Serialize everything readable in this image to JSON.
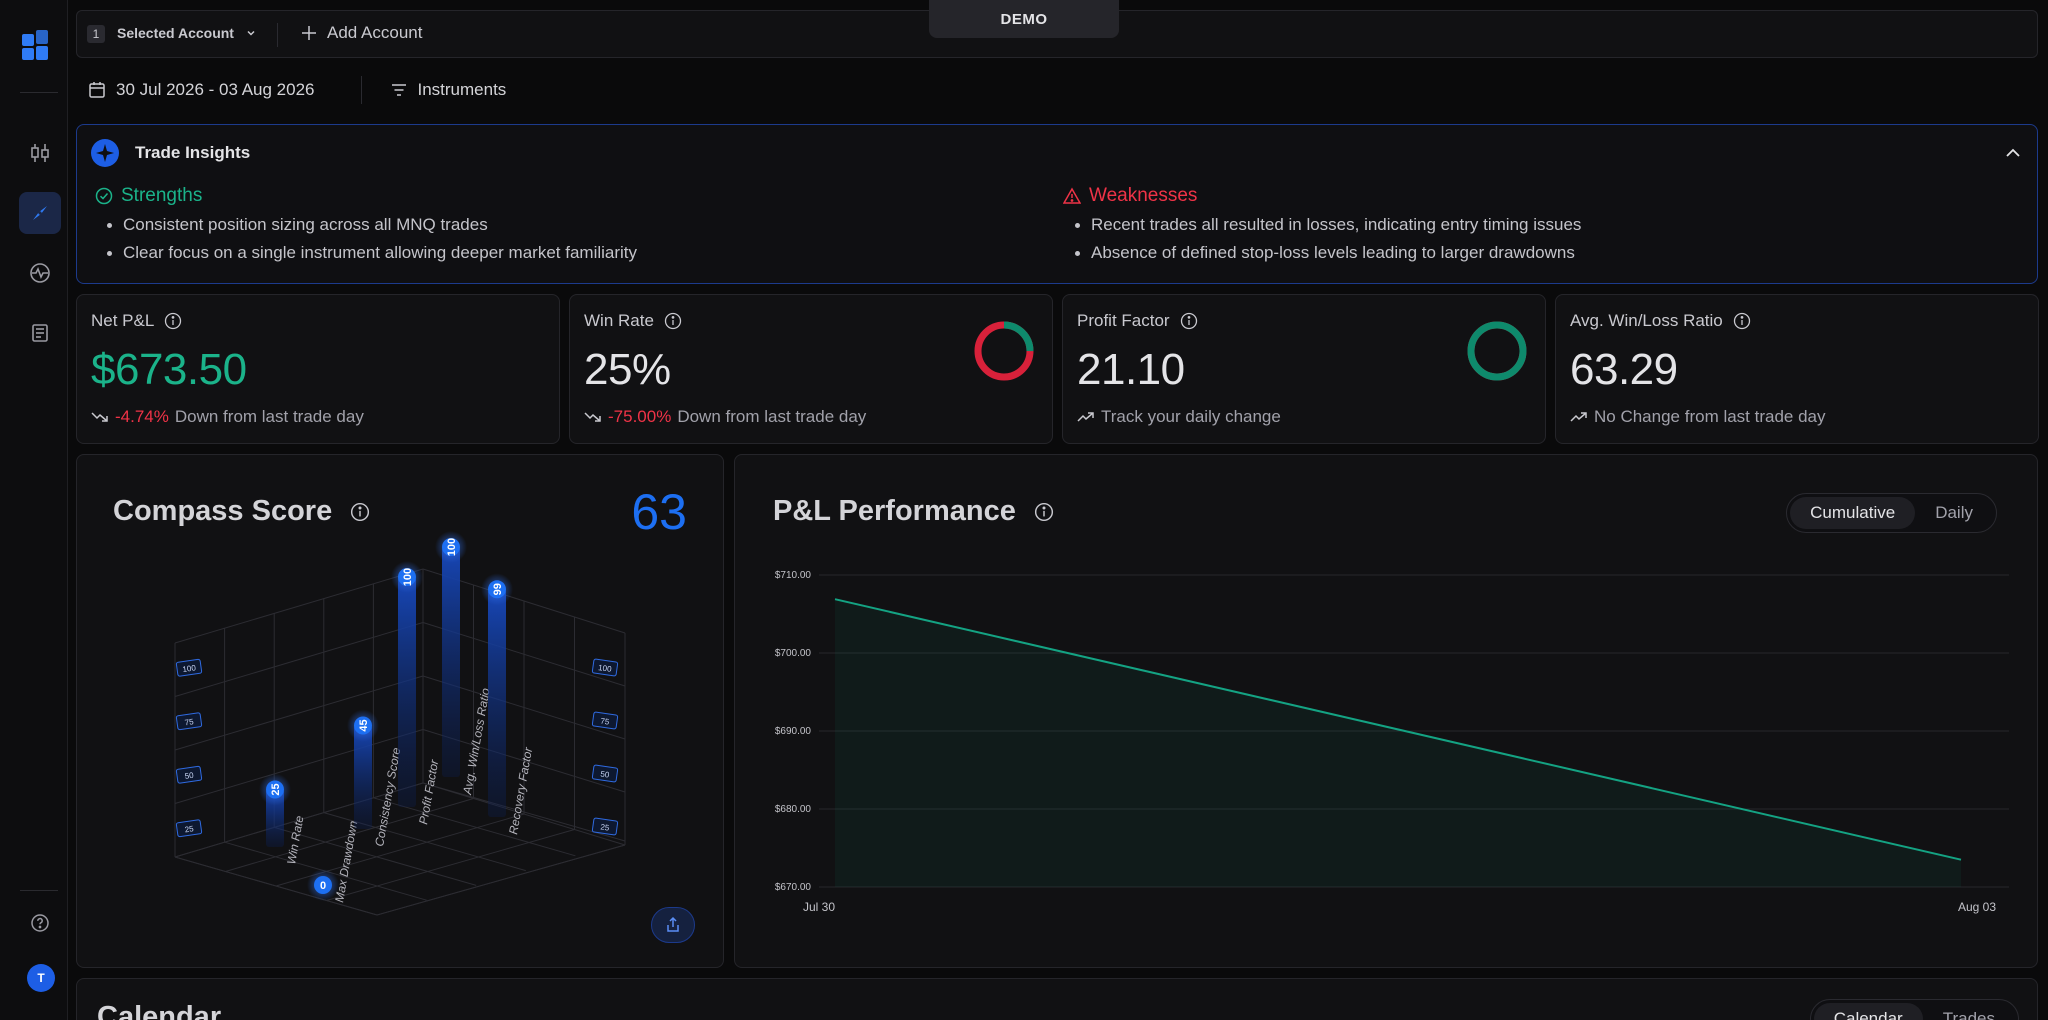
{
  "topbar": {
    "account_number": "1",
    "account_label": "Selected Account",
    "add_account_label": "Add Account",
    "mode_badge": "DEMO"
  },
  "filters": {
    "date_range": "30 Jul 2026 - 03 Aug 2026",
    "instruments_label": "Instruments"
  },
  "insights": {
    "title": "Trade Insights",
    "strengths": {
      "title": "Strengths",
      "items": [
        "Consistent position sizing across all MNQ trades",
        "Clear focus on a single instrument allowing deeper market familiarity"
      ]
    },
    "weaknesses": {
      "title": "Weaknesses",
      "items": [
        "Recent trades all resulted in losses, indicating entry timing issues",
        "Absence of defined stop-loss levels leading to larger drawdowns"
      ]
    }
  },
  "stats": [
    {
      "label": "Net P&L",
      "value": "$673.50",
      "change": "-4.74%",
      "sub": "Down from last trade day",
      "trend": "down"
    },
    {
      "label": "Win Rate",
      "value": "25%",
      "change": "-75.00%",
      "sub": "Down from last trade day",
      "trend": "down",
      "donut": {
        "fraction": 0.25,
        "colors": [
          "#0e8a6c",
          "#d8213a"
        ]
      }
    },
    {
      "label": "Profit Factor",
      "value": "21.10",
      "change": "",
      "sub": "Track your daily change",
      "trend": "up",
      "donut": {
        "fraction": 1,
        "colors": [
          "#0e8a6c",
          "#d8213a"
        ]
      }
    },
    {
      "label": "Avg. Win/Loss Ratio",
      "value": "63.29",
      "change": "",
      "sub": "No Change from last trade day",
      "trend": "up"
    }
  ],
  "compass": {
    "title": "Compass Score",
    "score": "63",
    "axis_ticks": [
      "100",
      "75",
      "50",
      "25"
    ],
    "metrics": [
      {
        "label": "Win Rate",
        "value": 25
      },
      {
        "label": "Max Drawdown",
        "value": 0
      },
      {
        "label": "Consistency Score",
        "value": 45
      },
      {
        "label": "Profit Factor",
        "value": 100
      },
      {
        "label": "Avg. Win/Loss Ratio",
        "value": 100
      },
      {
        "label": "Recovery Factor",
        "value": 99
      }
    ],
    "accent": "#1d6ff2"
  },
  "pnl": {
    "title": "P&L Performance",
    "modes": [
      "Cumulative",
      "Daily"
    ],
    "active_mode": "Cumulative"
  },
  "chart_data": {
    "type": "area",
    "title": "P&L Performance",
    "x": [
      "Jul 30",
      "Aug 03"
    ],
    "series": [
      {
        "values": [
          706.9,
          673.5
        ]
      }
    ],
    "ylim": [
      670,
      710
    ],
    "yticks": [
      "$670.00",
      "$680.00",
      "$690.00",
      "$700.00",
      "$710.00"
    ],
    "xticks": [
      "Jul 30",
      "Aug 03"
    ],
    "grid": true,
    "color": "#14a383"
  },
  "calendar": {
    "title": "Calendar",
    "tabs": [
      "Calendar",
      "Trades"
    ]
  }
}
